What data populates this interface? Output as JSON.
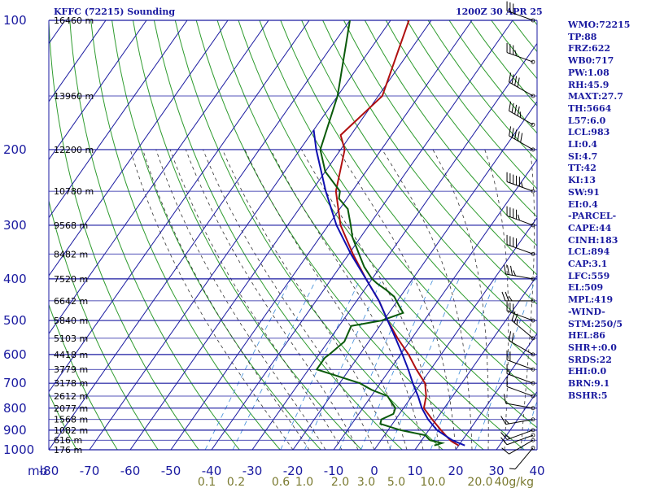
{
  "header": {
    "station": "KFFC (72215) Sounding",
    "time": "1200Z 30 APR 25"
  },
  "stats": [
    "WMO:72215",
    "TP:88",
    "FRZ:622",
    "WB0:717",
    "PW:1.08",
    "RH:45.9",
    "MAXT:27.7",
    "TH:5664",
    "L57:6.0",
    "LCL:983",
    "LI:0.4",
    "SI:4.7",
    "TT:42",
    "KI:13",
    "SW:91",
    "EI:0.4",
    "-PARCEL-",
    "CAPE:44",
    "CINH:183",
    "LCL:894",
    "CAP:3.1",
    "LFC:559",
    "EL:509",
    "MPL:419",
    "-WIND-",
    "STM:250/5",
    "HEL:86",
    "SHR+:0.0",
    "SRDS:22",
    "EHI:0.0",
    "BRN:9.1",
    "BSHR:5"
  ],
  "colors": {
    "axis_blue": "#1a1aa0",
    "dry_adiabat": "#2e9b2e",
    "isotherm": "#1a1aa0",
    "temperature": "#b01010",
    "dewpoint": "#0a5a0a",
    "parcel": "#1010b0",
    "moist_adiabat": "#333333",
    "mixing_ratio": "#3a8ad8",
    "wind_barb": "#000000",
    "mixing_label": "#7a7a30"
  },
  "chart_data": {
    "type": "line",
    "chart_kind": "skew-T log-P sounding",
    "xlabel_unit": "mb",
    "mixing_ratio_unit": "g/kg",
    "pressure_levels": [
      100,
      200,
      300,
      400,
      500,
      600,
      700,
      800,
      900,
      1000
    ],
    "pressure_labels": [
      "100",
      "200",
      "300",
      "400",
      "500",
      "600",
      "700",
      "800",
      "900",
      "1000"
    ],
    "temperature_ticks": [
      -80,
      -70,
      -60,
      -50,
      -40,
      -30,
      -20,
      -10,
      0,
      10,
      20,
      30,
      40
    ],
    "temperature_tick_labels": [
      "-80",
      "-70",
      "-60",
      "-50",
      "-40",
      "-30",
      "-20",
      "-10",
      "0",
      "10",
      "20",
      "30",
      "40"
    ],
    "xlim": [
      -80,
      40
    ],
    "ylim": [
      1000,
      100
    ],
    "y_scale": "log",
    "grid": true,
    "height_labels": [
      {
        "p": 100,
        "label": "16460 m"
      },
      {
        "p": 150,
        "label": "13960 m"
      },
      {
        "p": 200,
        "label": "12200 m"
      },
      {
        "p": 250,
        "label": "10780 m"
      },
      {
        "p": 300,
        "label": "9568 m"
      },
      {
        "p": 350,
        "label": "8482 m"
      },
      {
        "p": 400,
        "label": "7520 m"
      },
      {
        "p": 450,
        "label": "6642 m"
      },
      {
        "p": 500,
        "label": "5840 m"
      },
      {
        "p": 550,
        "label": "5103 m"
      },
      {
        "p": 600,
        "label": "4418 m"
      },
      {
        "p": 650,
        "label": "3779 m"
      },
      {
        "p": 700,
        "label": "3178 m"
      },
      {
        "p": 750,
        "label": "2612 m"
      },
      {
        "p": 800,
        "label": "2077 m"
      },
      {
        "p": 850,
        "label": "1568 m"
      },
      {
        "p": 900,
        "label": "1082 m"
      },
      {
        "p": 950,
        "label": "616 m"
      },
      {
        "p": 1000,
        "label": "176 m"
      }
    ],
    "mixing_ratio_labels": [
      {
        "w": 0.1,
        "label": "0.1"
      },
      {
        "w": 0.2,
        "label": "0.2"
      },
      {
        "w": 0.6,
        "label": "0.6"
      },
      {
        "w": 1.0,
        "label": "1.0"
      },
      {
        "w": 2.0,
        "label": "2.0"
      },
      {
        "w": 3.0,
        "label": "3.0"
      },
      {
        "w": 5.0,
        "label": "5.0"
      },
      {
        "w": 10.0,
        "label": "10.0"
      },
      {
        "w": 20.0,
        "label": "20.0"
      },
      {
        "w": 40.0,
        "label": "40g/kg"
      }
    ],
    "series": [
      {
        "name": "Temperature",
        "p": [
          977,
          960,
          950,
          925,
          900,
          850,
          800,
          750,
          700,
          650,
          600,
          550,
          500,
          450,
          400,
          350,
          300,
          250,
          200,
          185,
          150,
          100
        ],
        "t": [
          20.0,
          18.0,
          17.0,
          15.0,
          13.0,
          9.0,
          5.0,
          3.5,
          1.0,
          -3.5,
          -8.0,
          -13.5,
          -19.0,
          -24.5,
          -31.5,
          -39.0,
          -47.0,
          -54.0,
          -59.0,
          -62.5,
          -59.0,
          -65.5
        ]
      },
      {
        "name": "Dewpoint",
        "p": [
          977,
          965,
          950,
          925,
          900,
          870,
          850,
          825,
          800,
          775,
          750,
          725,
          700,
          650,
          610,
          600,
          560,
          515,
          500,
          480,
          460,
          440,
          425,
          410,
          400,
          375,
          350,
          320,
          300,
          275,
          260,
          250,
          225,
          200,
          150,
          100
        ],
        "t": [
          14.0,
          15.5,
          12.0,
          10.0,
          3.0,
          -3.0,
          -3.5,
          -1.5,
          -2.0,
          -4.0,
          -6.0,
          -11.0,
          -15.0,
          -28.0,
          -28.0,
          -27.5,
          -26.0,
          -27.0,
          -20.5,
          -16.5,
          -19.0,
          -21.5,
          -24.5,
          -28.0,
          -30.0,
          -34.0,
          -37.5,
          -42.0,
          -44.5,
          -48.0,
          -52.0,
          -53.0,
          -60.0,
          -65.0,
          -70.0,
          -80.0
        ]
      },
      {
        "name": "Parcel",
        "p": [
          977,
          950,
          900,
          850,
          800,
          750,
          700,
          650,
          600,
          550,
          500,
          450,
          400,
          350,
          300,
          250,
          200,
          180
        ],
        "t": [
          21.5,
          17.5,
          12.0,
          8.0,
          4.5,
          1.5,
          -2.0,
          -5.5,
          -9.5,
          -14.0,
          -19.0,
          -24.5,
          -31.5,
          -39.5,
          -48.0,
          -56.5,
          -66.0,
          -70.0
        ]
      }
    ],
    "wind_barbs": [
      {
        "p": 990,
        "dir": 220,
        "spd": 5
      },
      {
        "p": 950,
        "dir": 240,
        "spd": 10
      },
      {
        "p": 925,
        "dir": 250,
        "spd": 10
      },
      {
        "p": 900,
        "dir": 250,
        "spd": 15
      },
      {
        "p": 850,
        "dir": 260,
        "spd": 15
      },
      {
        "p": 800,
        "dir": 280,
        "spd": 10
      },
      {
        "p": 750,
        "dir": 290,
        "spd": 10
      },
      {
        "p": 700,
        "dir": 290,
        "spd": 15
      },
      {
        "p": 650,
        "dir": 290,
        "spd": 20
      },
      {
        "p": 600,
        "dir": 300,
        "spd": 20
      },
      {
        "p": 550,
        "dir": 310,
        "spd": 25
      },
      {
        "p": 500,
        "dir": 290,
        "spd": 30
      },
      {
        "p": 450,
        "dir": 270,
        "spd": 25
      },
      {
        "p": 400,
        "dir": 280,
        "spd": 35
      },
      {
        "p": 350,
        "dir": 290,
        "spd": 40
      },
      {
        "p": 300,
        "dir": 290,
        "spd": 45
      },
      {
        "p": 250,
        "dir": 290,
        "spd": 55
      },
      {
        "p": 200,
        "dir": 300,
        "spd": 50
      },
      {
        "p": 175,
        "dir": 300,
        "spd": 45
      },
      {
        "p": 150,
        "dir": 300,
        "spd": 40
      },
      {
        "p": 125,
        "dir": 290,
        "spd": 35
      },
      {
        "p": 100,
        "dir": 290,
        "spd": 30
      }
    ]
  }
}
